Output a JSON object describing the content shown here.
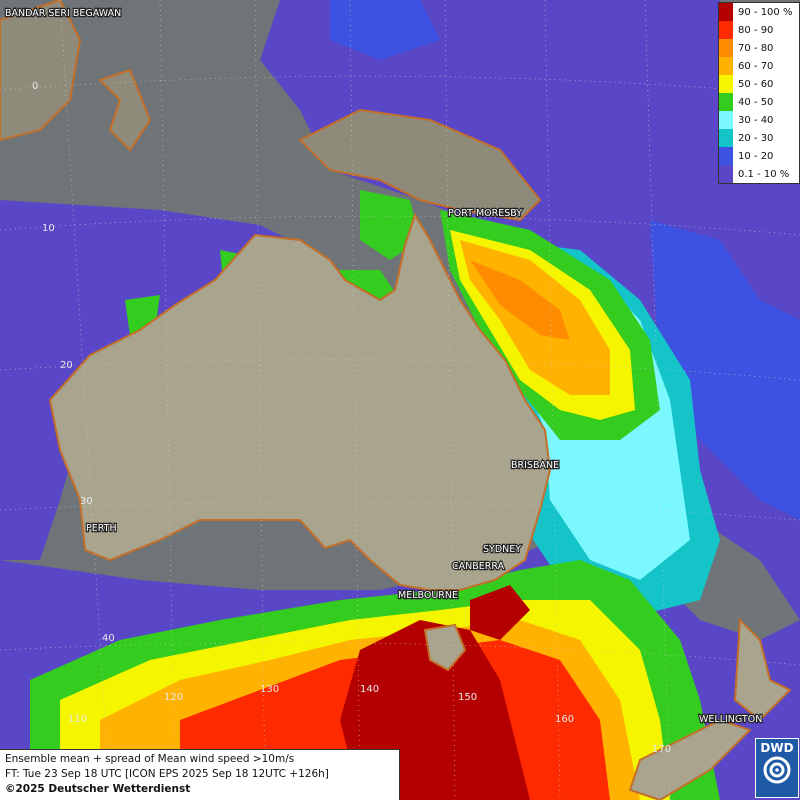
{
  "legend": {
    "items": [
      {
        "label": "90 - 100 %",
        "color": "#b40000"
      },
      {
        "label": "80 - 90",
        "color": "#ff2b00"
      },
      {
        "label": "70 - 80",
        "color": "#ff8c00"
      },
      {
        "label": "60 - 70",
        "color": "#ffb300"
      },
      {
        "label": "50 - 60",
        "color": "#f5f500"
      },
      {
        "label": "40 - 50",
        "color": "#33cc1f"
      },
      {
        "label": "30 - 40",
        "color": "#7af7ff"
      },
      {
        "label": "20 - 30",
        "color": "#14c4c9"
      },
      {
        "label": "10 - 20",
        "color": "#3d52e0"
      },
      {
        "label": "0.1 - 10 %",
        "color": "#5a47c7"
      }
    ]
  },
  "cities": {
    "bandar": "BANDAR SERI BEGAWAN",
    "port_moresby": "PORT MORESBY",
    "brisbane": "BRISBANE",
    "perth": "PERTH",
    "sydney": "SYDNEY",
    "canberra": "CANBERRA",
    "melbourne": "MELBOURNE",
    "wellington": "WELLINGTON"
  },
  "lat_labels": {
    "l0": "0",
    "l10": "10",
    "l20": "20",
    "l30": "30",
    "l40": "40"
  },
  "lon_labels": {
    "e110": "110",
    "e120": "120",
    "e130": "130",
    "e140": "140",
    "e150": "150",
    "e160": "160",
    "e170": "170"
  },
  "footer": {
    "line1": "Ensemble mean + spread of Mean wind speed >10m/s",
    "line2": "FT: Tue 23 Sep 18 UTC [ICON EPS 2025 Sep 18 12UTC +126h]",
    "copyright": "©2025 Deutscher Wetterdienst"
  },
  "logo": {
    "text": "DWD"
  }
}
